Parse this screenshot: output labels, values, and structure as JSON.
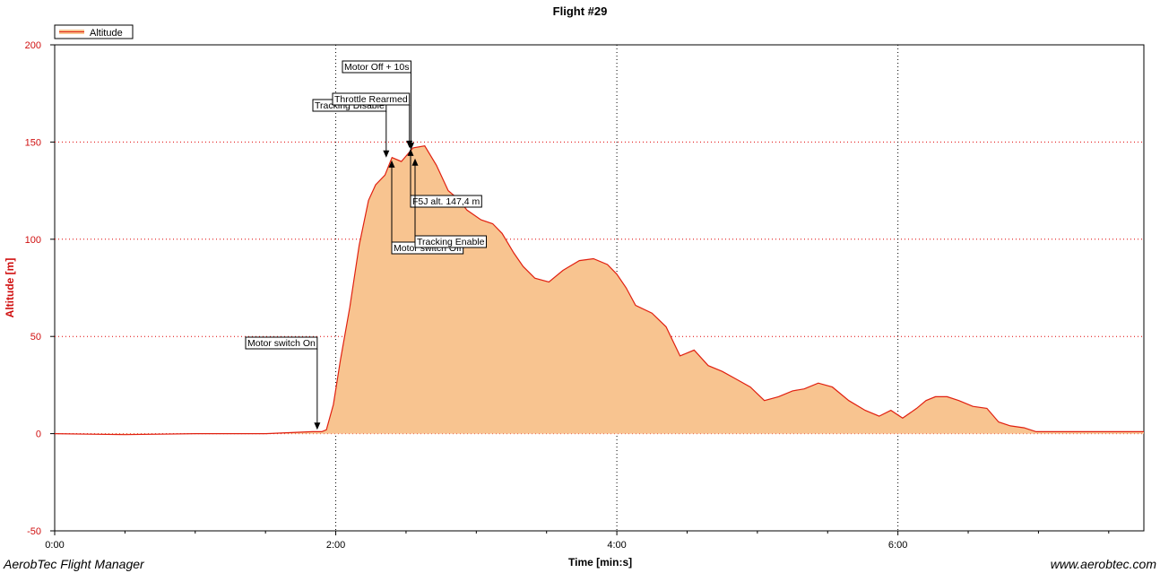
{
  "footer": {
    "app_name": "AerobTec Flight Manager",
    "website": "www.aerobtec.com"
  },
  "chart_data": {
    "type": "area",
    "title": "Flight #29",
    "xlabel": "Time [min:s]",
    "ylabel": "Altitude [m]",
    "xlim": [
      0,
      465
    ],
    "ylim": [
      -50,
      200
    ],
    "x_ticks": [
      0,
      120,
      240,
      360
    ],
    "x_tick_labels": [
      "0:00",
      "2:00",
      "4:00",
      "6:00"
    ],
    "y_ticks": [
      -50,
      0,
      50,
      100,
      150,
      200
    ],
    "y_tick_labels": [
      "-50",
      "0",
      "50",
      "100",
      "150",
      "200"
    ],
    "grid": true,
    "legend": {
      "position": "top-left",
      "entries": [
        "Altitude"
      ]
    },
    "colors": {
      "line": "#e02010",
      "fill": "#f8c490",
      "axis_text": "#d01010"
    },
    "series": [
      {
        "name": "Altitude",
        "x": [
          0,
          30,
          60,
          90,
          100,
          110,
          114,
          116,
          119,
          122,
          126,
          130,
          134,
          137,
          141,
          144,
          148,
          153,
          158,
          163,
          168,
          172,
          176,
          182,
          187,
          191,
          196,
          200,
          205,
          211,
          217,
          224,
          230,
          236,
          240,
          244,
          248,
          255,
          261,
          267,
          273,
          279,
          285,
          291,
          297,
          303,
          309,
          315,
          320,
          326,
          332,
          339,
          346,
          352,
          357,
          362,
          368,
          372,
          376,
          381,
          386,
          392,
          398,
          403,
          408,
          414,
          419,
          424,
          429,
          434,
          439,
          450,
          465
        ],
        "y": [
          0,
          -0.5,
          0,
          0,
          0.5,
          1,
          1,
          2,
          15,
          38,
          65,
          97,
          120,
          128,
          133,
          142,
          140,
          147,
          148,
          138,
          125,
          121,
          115,
          110,
          108,
          103,
          93,
          86,
          80,
          78,
          84,
          89,
          90,
          87,
          82,
          75,
          66,
          62,
          55,
          40,
          43,
          35,
          32,
          28,
          24,
          17,
          19,
          22,
          23,
          26,
          24,
          17,
          12,
          9,
          12,
          8,
          13,
          17,
          19,
          19,
          17,
          14,
          13,
          6,
          4,
          3,
          1,
          1,
          1,
          1,
          1,
          1,
          1
        ]
      }
    ],
    "annotations": [
      {
        "label": "Motor switch On",
        "x": 114,
        "y": 2,
        "arrow": "down"
      },
      {
        "label": "Tracking Disable",
        "x": 143,
        "y": 142,
        "arrow": "down"
      },
      {
        "label": "Motor switch Off",
        "x": 143,
        "y": 141,
        "arrow": "up"
      },
      {
        "label": "Throttle Rearmed",
        "x": 152,
        "y": 147,
        "arrow": "down"
      },
      {
        "label": "F5J alt. 147,4 m",
        "x": 151,
        "y": 147,
        "arrow": "up"
      },
      {
        "label": "Motor Off + 10s",
        "x": 153,
        "y": 146,
        "arrow": "down"
      },
      {
        "label": "Tracking Enable",
        "x": 153,
        "y": 142,
        "arrow": "up"
      }
    ]
  }
}
